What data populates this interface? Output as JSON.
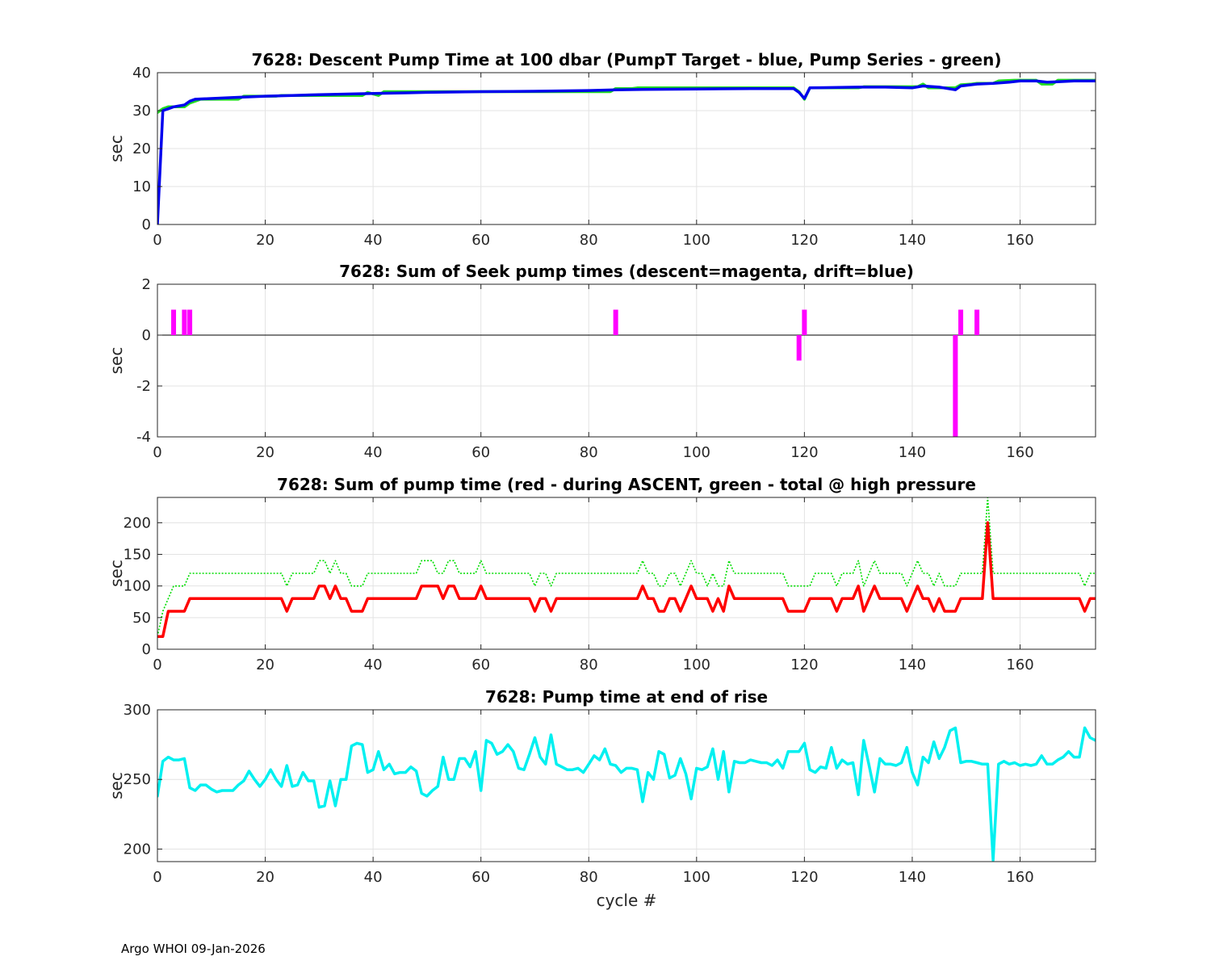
{
  "figure": {
    "footer": "Argo WHOI 09-Jan-2026",
    "xlabel": "cycle #"
  },
  "colors": {
    "green": "#22dd22",
    "blue": "#0000ee",
    "magenta": "#ff00ff",
    "red": "#ff0000",
    "dotted_green": "#00dd00",
    "cyan": "#00f0f0"
  },
  "chart_data": [
    {
      "id": "descent",
      "type": "line",
      "title": "7628: Descent Pump Time at 100 dbar (PumpT Target - blue, Pump Series - green)",
      "ylabel": "sec",
      "xlim": [
        0,
        174
      ],
      "ylim": [
        0,
        40
      ],
      "xticks": [
        0,
        20,
        40,
        60,
        80,
        100,
        120,
        140,
        160
      ],
      "yticks": [
        0,
        10,
        20,
        30,
        40
      ],
      "series": [
        {
          "name": "Pump Series",
          "color": "green",
          "width": 3.5,
          "x": [
            0,
            1,
            2,
            5,
            6,
            7,
            8,
            15,
            16,
            22,
            23,
            38,
            39,
            41,
            42,
            84,
            85,
            88,
            89,
            118,
            119,
            120,
            121,
            130,
            131,
            141,
            142,
            143,
            145,
            148,
            149,
            151,
            152,
            155,
            156,
            159,
            160,
            163,
            164,
            166,
            167,
            174
          ],
          "y": [
            29.5,
            30.5,
            31,
            31,
            32,
            32.5,
            33,
            33,
            33.8,
            33.8,
            34,
            34,
            34.8,
            34,
            35,
            35,
            35.8,
            35.8,
            36,
            36,
            35,
            33,
            36,
            36,
            36.3,
            36.3,
            37,
            36,
            36,
            36,
            36.8,
            37,
            37.2,
            37.2,
            37.8,
            38,
            38,
            38,
            37,
            37,
            38,
            38
          ]
        },
        {
          "name": "PumpT Target",
          "color": "blue",
          "width": 3.5,
          "x": [
            0,
            1,
            2,
            3,
            5,
            6,
            7,
            10,
            15,
            20,
            25,
            30,
            40,
            50,
            60,
            70,
            80,
            85,
            90,
            100,
            110,
            118,
            119,
            120,
            121,
            130,
            135,
            140,
            142,
            145,
            148,
            149,
            152,
            155,
            158,
            160,
            163,
            165,
            167,
            170,
            174
          ],
          "y": [
            0,
            30,
            30.5,
            31,
            31.5,
            32.5,
            33,
            33.2,
            33.5,
            33.8,
            34,
            34.2,
            34.5,
            34.8,
            35,
            35.1,
            35.3,
            35.5,
            35.6,
            35.7,
            35.8,
            35.8,
            34.8,
            33.2,
            36,
            36.2,
            36.2,
            36,
            36.5,
            36.2,
            35.5,
            36.5,
            37,
            37.2,
            37.5,
            37.8,
            37.8,
            37.5,
            37.6,
            37.8,
            37.8
          ]
        }
      ]
    },
    {
      "id": "seek",
      "type": "bar",
      "title": "7628: Sum of Seek pump times (descent=magenta, drift=blue)",
      "ylabel": "sec",
      "xlim": [
        0,
        174
      ],
      "ylim": [
        -4,
        2
      ],
      "xticks": [
        0,
        20,
        40,
        60,
        80,
        100,
        120,
        140,
        160
      ],
      "yticks": [
        -4,
        -2,
        0,
        2
      ],
      "series": [
        {
          "name": "descent",
          "color": "magenta",
          "x": [
            3,
            5,
            6,
            85,
            119,
            120,
            148,
            149,
            152
          ],
          "values": [
            1,
            1,
            1,
            1,
            -1,
            1,
            -4,
            1,
            1
          ]
        }
      ]
    },
    {
      "id": "ascent",
      "type": "line",
      "title": "7628: Sum of pump time (red - during ASCENT, green - total @ high pressure",
      "ylabel": "sec",
      "xlim": [
        0,
        174
      ],
      "ylim": [
        0,
        240
      ],
      "xticks": [
        0,
        20,
        40,
        60,
        80,
        100,
        120,
        140,
        160
      ],
      "yticks": [
        0,
        50,
        100,
        150,
        200
      ],
      "series": [
        {
          "name": "total @ high pressure",
          "color": "dotted_green",
          "width": 1.6,
          "dashed": true,
          "x": [
            0,
            1,
            2,
            3,
            4,
            5,
            6,
            7,
            23,
            24,
            25,
            28,
            29,
            30,
            31,
            32,
            33,
            34,
            35,
            36,
            37,
            38,
            39,
            48,
            49,
            50,
            51,
            52,
            53,
            54,
            55,
            56,
            57,
            58,
            59,
            60,
            61,
            69,
            70,
            71,
            72,
            73,
            74,
            89,
            90,
            91,
            92,
            93,
            94,
            95,
            96,
            97,
            98,
            99,
            100,
            101,
            102,
            103,
            104,
            105,
            106,
            107,
            116,
            117,
            118,
            119,
            120,
            121,
            122,
            125,
            126,
            127,
            128,
            129,
            130,
            131,
            132,
            133,
            134,
            135,
            138,
            139,
            140,
            141,
            142,
            143,
            144,
            145,
            146,
            147,
            148,
            149,
            150,
            153,
            154,
            155,
            156,
            170,
            171,
            172,
            173,
            174
          ],
          "y": [
            20,
            60,
            80,
            100,
            100,
            100,
            120,
            120,
            120,
            100,
            120,
            120,
            120,
            140,
            140,
            120,
            140,
            120,
            120,
            100,
            100,
            100,
            120,
            120,
            140,
            140,
            140,
            120,
            120,
            140,
            140,
            120,
            120,
            120,
            120,
            140,
            120,
            120,
            100,
            120,
            120,
            100,
            120,
            120,
            140,
            120,
            120,
            100,
            100,
            120,
            120,
            100,
            120,
            140,
            120,
            120,
            100,
            120,
            100,
            100,
            140,
            120,
            120,
            100,
            100,
            100,
            100,
            100,
            120,
            120,
            100,
            120,
            120,
            120,
            140,
            100,
            120,
            140,
            120,
            120,
            120,
            100,
            120,
            140,
            120,
            120,
            100,
            120,
            100,
            100,
            100,
            120,
            120,
            120,
            240,
            120,
            120,
            120,
            120,
            100,
            120,
            120
          ]
        },
        {
          "name": "during ASCENT",
          "color": "red",
          "width": 3.5,
          "x": [
            0,
            1,
            2,
            3,
            4,
            5,
            6,
            7,
            23,
            24,
            25,
            29,
            30,
            31,
            32,
            33,
            34,
            35,
            36,
            37,
            38,
            39,
            48,
            49,
            50,
            51,
            52,
            53,
            54,
            55,
            56,
            57,
            58,
            59,
            60,
            61,
            69,
            70,
            71,
            72,
            73,
            74,
            89,
            90,
            91,
            92,
            93,
            94,
            95,
            96,
            97,
            98,
            99,
            100,
            101,
            102,
            103,
            104,
            105,
            106,
            107,
            116,
            117,
            118,
            119,
            120,
            121,
            122,
            125,
            126,
            127,
            128,
            129,
            130,
            131,
            132,
            133,
            134,
            135,
            138,
            139,
            140,
            141,
            142,
            143,
            144,
            145,
            146,
            147,
            148,
            149,
            153,
            154,
            155,
            156,
            171,
            172,
            173,
            174
          ],
          "y": [
            20,
            20,
            60,
            60,
            60,
            60,
            80,
            80,
            80,
            60,
            80,
            80,
            100,
            100,
            80,
            100,
            80,
            80,
            60,
            60,
            60,
            80,
            80,
            100,
            100,
            100,
            100,
            80,
            100,
            100,
            80,
            80,
            80,
            80,
            100,
            80,
            80,
            60,
            80,
            80,
            60,
            80,
            80,
            100,
            80,
            80,
            60,
            60,
            80,
            80,
            60,
            80,
            100,
            80,
            80,
            80,
            60,
            80,
            60,
            100,
            80,
            80,
            60,
            60,
            60,
            60,
            80,
            80,
            80,
            60,
            80,
            80,
            80,
            100,
            60,
            80,
            100,
            80,
            80,
            80,
            60,
            80,
            100,
            80,
            80,
            60,
            80,
            60,
            60,
            60,
            80,
            80,
            200,
            80,
            80,
            80,
            60,
            80,
            80
          ]
        }
      ]
    },
    {
      "id": "rise",
      "type": "line",
      "title": "7628: Pump time at end of rise",
      "ylabel": "sec",
      "xlabel": "cycle #",
      "xlim": [
        0,
        174
      ],
      "ylim": [
        191,
        300
      ],
      "xticks": [
        0,
        20,
        40,
        60,
        80,
        100,
        120,
        140,
        160
      ],
      "yticks": [
        200,
        250,
        300
      ],
      "series": [
        {
          "name": "rise",
          "color": "cyan",
          "width": 3.5,
          "x": [
            0,
            1,
            2,
            3,
            4,
            5,
            6,
            7,
            8,
            9,
            10,
            11,
            12,
            13,
            14,
            15,
            16,
            17,
            18,
            19,
            20,
            21,
            22,
            23,
            24,
            25,
            26,
            27,
            28,
            29,
            30,
            31,
            32,
            33,
            34,
            35,
            36,
            37,
            38,
            39,
            40,
            41,
            42,
            43,
            44,
            45,
            46,
            47,
            48,
            49,
            50,
            51,
            52,
            53,
            54,
            55,
            56,
            57,
            58,
            59,
            60,
            61,
            62,
            63,
            64,
            65,
            66,
            67,
            68,
            69,
            70,
            71,
            72,
            73,
            74,
            75,
            76,
            77,
            78,
            79,
            80,
            81,
            82,
            83,
            84,
            85,
            86,
            87,
            88,
            89,
            90,
            91,
            92,
            93,
            94,
            95,
            96,
            97,
            98,
            99,
            100,
            101,
            102,
            103,
            104,
            105,
            106,
            107,
            108,
            109,
            110,
            111,
            112,
            113,
            114,
            115,
            116,
            117,
            118,
            119,
            120,
            121,
            122,
            123,
            124,
            125,
            126,
            127,
            128,
            129,
            130,
            131,
            132,
            133,
            134,
            135,
            136,
            137,
            138,
            139,
            140,
            141,
            142,
            143,
            144,
            145,
            146,
            147,
            148,
            149,
            150,
            151,
            152,
            153,
            154,
            155,
            156,
            157,
            158,
            159,
            160,
            161,
            162,
            163,
            164,
            165,
            166,
            167,
            168,
            169,
            170,
            171,
            172,
            173,
            174
          ],
          "y": [
            238,
            263,
            266,
            264,
            264,
            265,
            244,
            242,
            246,
            246,
            243,
            241,
            242,
            242,
            242,
            246,
            249,
            256,
            250,
            245,
            250,
            257,
            250,
            245,
            260,
            245,
            246,
            255,
            249,
            249,
            230,
            231,
            249,
            231,
            250,
            250,
            274,
            276,
            275,
            255,
            257,
            270,
            257,
            261,
            254,
            255,
            255,
            259,
            256,
            240,
            238,
            242,
            245,
            266,
            250,
            250,
            265,
            265,
            259,
            270,
            242,
            278,
            276,
            268,
            270,
            275,
            270,
            258,
            257,
            268,
            280,
            266,
            261,
            282,
            261,
            259,
            257,
            257,
            258,
            255,
            261,
            267,
            264,
            272,
            261,
            260,
            255,
            258,
            258,
            257,
            234,
            255,
            250,
            270,
            268,
            251,
            253,
            265,
            254,
            236,
            258,
            257,
            259,
            272,
            250,
            270,
            241,
            263,
            262,
            262,
            264,
            263,
            262,
            262,
            260,
            264,
            258,
            270,
            270,
            270,
            276,
            257,
            255,
            259,
            258,
            273,
            258,
            264,
            261,
            262,
            239,
            278,
            260,
            241,
            265,
            261,
            261,
            260,
            262,
            273,
            255,
            246,
            266,
            262,
            277,
            265,
            273,
            285,
            287,
            262,
            263,
            263,
            262,
            261,
            261,
            192,
            261,
            263,
            261,
            262,
            260,
            261,
            260,
            261,
            267,
            261,
            261,
            264,
            266,
            270,
            266,
            266,
            287,
            280,
            278
          ]
        }
      ]
    }
  ]
}
